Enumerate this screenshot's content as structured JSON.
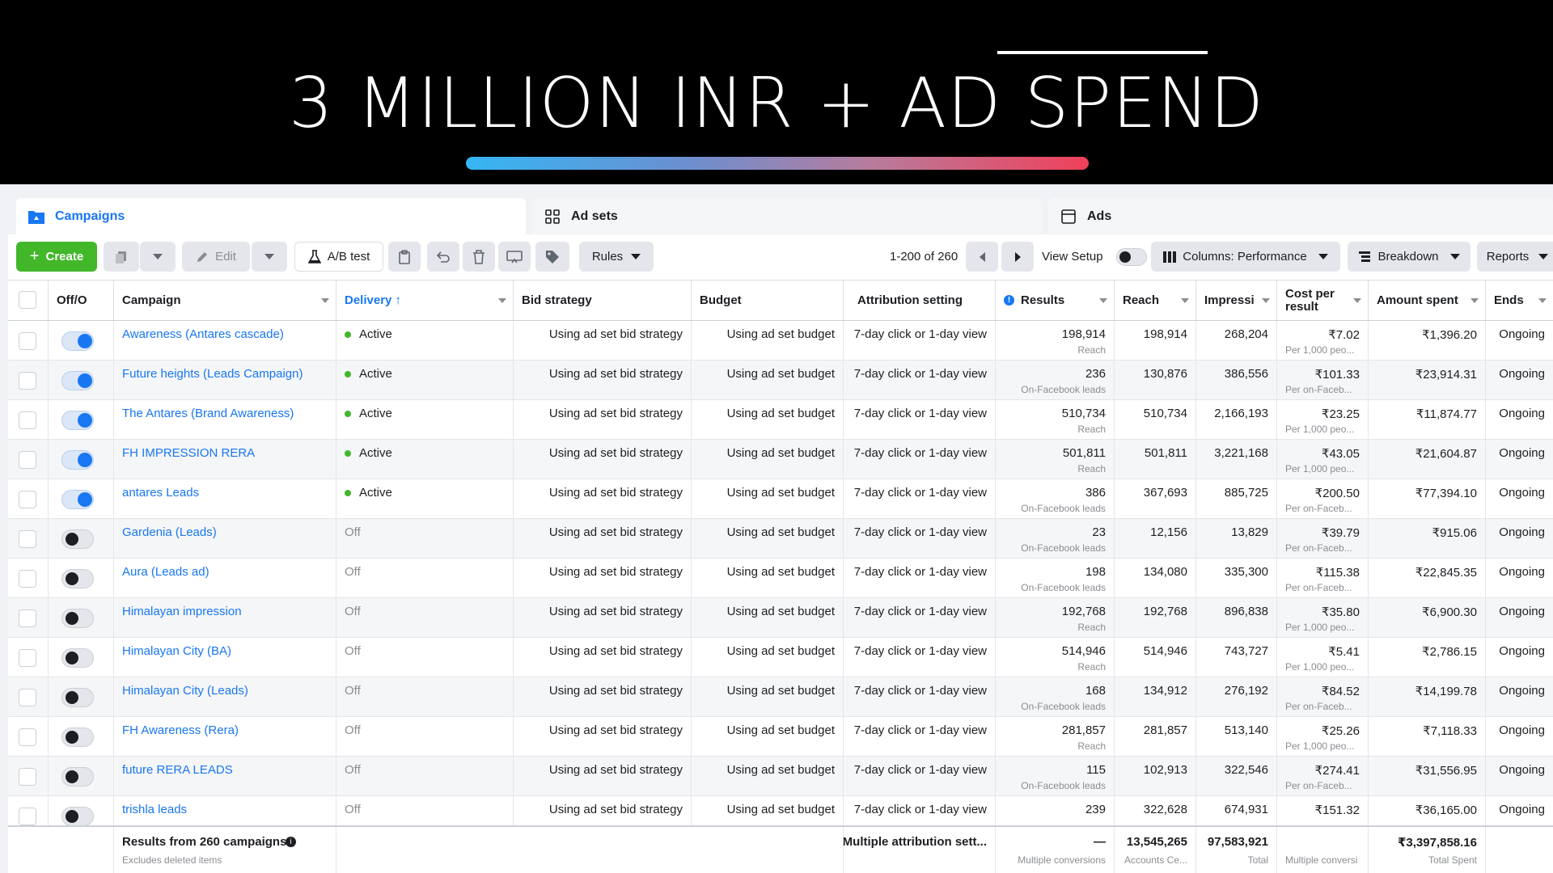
{
  "banner": {
    "title": "3 MILLION INR + AD SPEND"
  },
  "tabs": [
    {
      "label": "Campaigns",
      "icon": "folder-icon"
    },
    {
      "label": "Ad sets",
      "icon": "grid-icon"
    },
    {
      "label": "Ads",
      "icon": "ad-icon"
    }
  ],
  "toolbar": {
    "create": "Create",
    "edit": "Edit",
    "ab_test": "A/B test",
    "rules": "Rules",
    "pagination": "1-200 of 260",
    "view_setup": "View Setup",
    "columns": "Columns: Performance",
    "breakdown": "Breakdown",
    "reports": "Reports"
  },
  "columns": {
    "onoff": "Off/O",
    "campaign": "Campaign",
    "delivery": "Delivery",
    "bid_strategy": "Bid strategy",
    "budget": "Budget",
    "attribution": "Attribution setting",
    "results": "Results",
    "reach": "Reach",
    "impressions": "Impressi",
    "cost_per_result": "Cost per result",
    "amount_spent": "Amount spent",
    "ends": "Ends"
  },
  "rows": [
    {
      "name": "Awareness (Antares cascade)",
      "on": true,
      "delivery": "Active",
      "bid": "Using ad set bid strategy",
      "budget": "Using ad set budget",
      "attr": "7-day click or 1-day view",
      "results": "198,914",
      "results_sub": "Reach",
      "reach": "198,914",
      "impr": "268,204",
      "cpr": "₹7.02",
      "cpr_sub": "Per 1,000 peo...",
      "spent": "₹1,396.20",
      "ends": "Ongoing"
    },
    {
      "name": "Future heights (Leads Campaign)",
      "on": true,
      "delivery": "Active",
      "bid": "Using ad set bid strategy",
      "budget": "Using ad set budget",
      "attr": "7-day click or 1-day view",
      "results": "236",
      "results_sub": "On-Facebook leads",
      "reach": "130,876",
      "impr": "386,556",
      "cpr": "₹101.33",
      "cpr_sub": "Per on-Faceb...",
      "spent": "₹23,914.31",
      "ends": "Ongoing"
    },
    {
      "name": "The Antares (Brand Awareness)",
      "on": true,
      "delivery": "Active",
      "bid": "Using ad set bid strategy",
      "budget": "Using ad set budget",
      "attr": "7-day click or 1-day view",
      "results": "510,734",
      "results_sub": "Reach",
      "reach": "510,734",
      "impr": "2,166,193",
      "cpr": "₹23.25",
      "cpr_sub": "Per 1,000 peo...",
      "spent": "₹11,874.77",
      "ends": "Ongoing"
    },
    {
      "name": "FH IMPRESSION RERA",
      "on": true,
      "delivery": "Active",
      "bid": "Using ad set bid strategy",
      "budget": "Using ad set budget",
      "attr": "7-day click or 1-day view",
      "results": "501,811",
      "results_sub": "Reach",
      "reach": "501,811",
      "impr": "3,221,168",
      "cpr": "₹43.05",
      "cpr_sub": "Per 1,000 peo...",
      "spent": "₹21,604.87",
      "ends": "Ongoing"
    },
    {
      "name": "antares Leads",
      "on": true,
      "delivery": "Active",
      "bid": "Using ad set bid strategy",
      "budget": "Using ad set budget",
      "attr": "7-day click or 1-day view",
      "results": "386",
      "results_sub": "On-Facebook leads",
      "reach": "367,693",
      "impr": "885,725",
      "cpr": "₹200.50",
      "cpr_sub": "Per on-Faceb...",
      "spent": "₹77,394.10",
      "ends": "Ongoing"
    },
    {
      "name": "Gardenia (Leads)",
      "on": false,
      "delivery": "Off",
      "bid": "Using ad set bid strategy",
      "budget": "Using ad set budget",
      "attr": "7-day click or 1-day view",
      "results": "23",
      "results_sub": "On-Facebook leads",
      "reach": "12,156",
      "impr": "13,829",
      "cpr": "₹39.79",
      "cpr_sub": "Per on-Faceb...",
      "spent": "₹915.06",
      "ends": "Ongoing"
    },
    {
      "name": "Aura (Leads ad)",
      "on": false,
      "delivery": "Off",
      "bid": "Using ad set bid strategy",
      "budget": "Using ad set budget",
      "attr": "7-day click or 1-day view",
      "results": "198",
      "results_sub": "On-Facebook leads",
      "reach": "134,080",
      "impr": "335,300",
      "cpr": "₹115.38",
      "cpr_sub": "Per on-Faceb...",
      "spent": "₹22,845.35",
      "ends": "Ongoing"
    },
    {
      "name": "Himalayan impression",
      "on": false,
      "delivery": "Off",
      "bid": "Using ad set bid strategy",
      "budget": "Using ad set budget",
      "attr": "7-day click or 1-day view",
      "results": "192,768",
      "results_sub": "Reach",
      "reach": "192,768",
      "impr": "896,838",
      "cpr": "₹35.80",
      "cpr_sub": "Per 1,000 peo...",
      "spent": "₹6,900.30",
      "ends": "Ongoing"
    },
    {
      "name": "Himalayan City (BA)",
      "on": false,
      "delivery": "Off",
      "bid": "Using ad set bid strategy",
      "budget": "Using ad set budget",
      "attr": "7-day click or 1-day view",
      "results": "514,946",
      "results_sub": "Reach",
      "reach": "514,946",
      "impr": "743,727",
      "cpr": "₹5.41",
      "cpr_sub": "Per 1,000 peo...",
      "spent": "₹2,786.15",
      "ends": "Ongoing"
    },
    {
      "name": "Himalayan City (Leads)",
      "on": false,
      "delivery": "Off",
      "bid": "Using ad set bid strategy",
      "budget": "Using ad set budget",
      "attr": "7-day click or 1-day view",
      "results": "168",
      "results_sub": "On-Facebook leads",
      "reach": "134,912",
      "impr": "276,192",
      "cpr": "₹84.52",
      "cpr_sub": "Per on-Faceb...",
      "spent": "₹14,199.78",
      "ends": "Ongoing"
    },
    {
      "name": "FH Awareness (Rera)",
      "on": false,
      "delivery": "Off",
      "bid": "Using ad set bid strategy",
      "budget": "Using ad set budget",
      "attr": "7-day click or 1-day view",
      "results": "281,857",
      "results_sub": "Reach",
      "reach": "281,857",
      "impr": "513,140",
      "cpr": "₹25.26",
      "cpr_sub": "Per 1,000 peo...",
      "spent": "₹7,118.33",
      "ends": "Ongoing"
    },
    {
      "name": "future RERA LEADS",
      "on": false,
      "delivery": "Off",
      "bid": "Using ad set bid strategy",
      "budget": "Using ad set budget",
      "attr": "7-day click or 1-day view",
      "results": "115",
      "results_sub": "On-Facebook leads",
      "reach": "102,913",
      "impr": "322,546",
      "cpr": "₹274.41",
      "cpr_sub": "Per on-Faceb...",
      "spent": "₹31,556.95",
      "ends": "Ongoing"
    },
    {
      "name": "trishla leads",
      "on": false,
      "delivery": "Off",
      "bid": "Using ad set bid strategy",
      "budget": "Using ad set budget",
      "attr": "7-day click or 1-day view",
      "results": "239",
      "results_sub": "",
      "reach": "322,628",
      "impr": "674,931",
      "cpr": "₹151.32",
      "cpr_sub": "",
      "spent": "₹36,165.00",
      "ends": "Ongoing"
    }
  ],
  "footer": {
    "title": "Results from 260 campaigns",
    "subtitle": "Excludes deleted items",
    "attribution": "Multiple attribution sett...",
    "results": "—",
    "results_sub": "Multiple conversions",
    "reach": "13,545,265",
    "reach_sub": "Accounts Ce...",
    "impr": "97,583,921",
    "impr_sub": "Total",
    "cpr_sub": "Multiple conversi",
    "spent": "₹3,397,858.16",
    "spent_sub": "Total Spent"
  }
}
